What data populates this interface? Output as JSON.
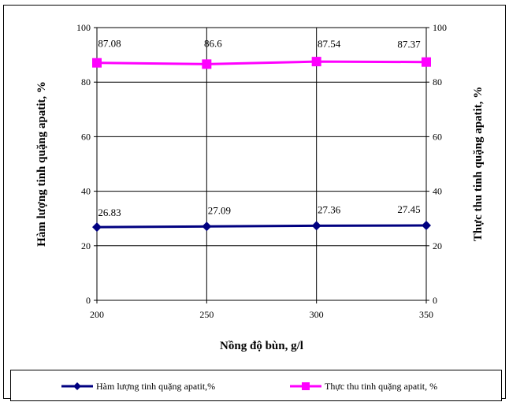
{
  "chart_data": {
    "type": "line",
    "x": [
      200,
      250,
      300,
      350
    ],
    "xlabel": "Nồng độ bùn, g/l",
    "ylabel_left": "Hàm lượng tinh quặng apatit, %",
    "ylabel_right": "Thực thu tinh quặng apatit, %",
    "xlim": [
      200,
      350
    ],
    "ylim": [
      0,
      100
    ],
    "yticks": [
      0,
      20,
      40,
      60,
      80,
      100
    ],
    "xticks": [
      200,
      250,
      300,
      350
    ],
    "grid": true,
    "legend_position": "bottom",
    "series": [
      {
        "name": "Hàm lượng tinh quặng apatit,%",
        "values": [
          26.83,
          27.09,
          27.36,
          27.45
        ],
        "labels": [
          "26.83",
          "27.09",
          "27.36",
          "27.45"
        ],
        "color": "#000080",
        "marker": "diamond",
        "axis": "left"
      },
      {
        "name": "Thực thu tinh quặng apatit, %",
        "values": [
          87.08,
          86.6,
          87.54,
          87.37
        ],
        "labels": [
          "87.08",
          "86.6",
          "87.54",
          "87.37"
        ],
        "color": "#FF00FF",
        "marker": "square",
        "axis": "right"
      }
    ]
  }
}
